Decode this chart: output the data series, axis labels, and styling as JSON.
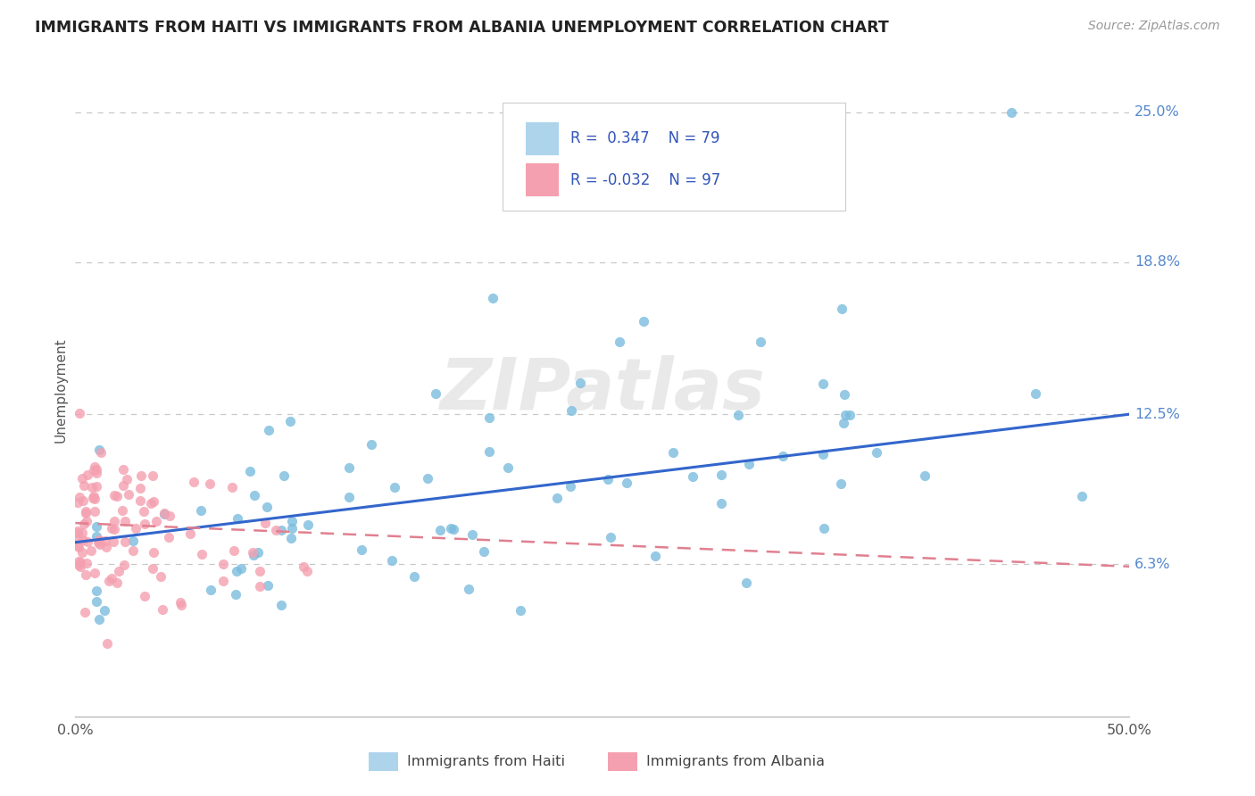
{
  "title": "IMMIGRANTS FROM HAITI VS IMMIGRANTS FROM ALBANIA UNEMPLOYMENT CORRELATION CHART",
  "source": "Source: ZipAtlas.com",
  "ylabel": "Unemployment",
  "xlim": [
    0.0,
    0.5
  ],
  "ylim": [
    0.0,
    0.27
  ],
  "haiti_color": "#7bbcde",
  "haiti_color_light": "#aed4ec",
  "albania_color": "#f4a0b0",
  "albania_color_dark": "#e87090",
  "haiti_line_color": "#3366cc",
  "albania_line_color": "#e08090",
  "r_haiti": 0.347,
  "n_haiti": 79,
  "r_albania": -0.032,
  "n_albania": 97,
  "legend_haiti": "Immigrants from Haiti",
  "legend_albania": "Immigrants from Albania",
  "watermark": "ZIPatlas",
  "background_color": "#ffffff",
  "grid_color": "#c8c8c8",
  "ytick_vals": [
    0.063,
    0.125,
    0.188,
    0.25
  ],
  "ytick_labels": [
    "6.3%",
    "12.5%",
    "18.8%",
    "25.0%"
  ],
  "haiti_line_y0": 0.072,
  "haiti_line_y1": 0.125,
  "albania_line_y0": 0.08,
  "albania_line_y1": 0.062
}
